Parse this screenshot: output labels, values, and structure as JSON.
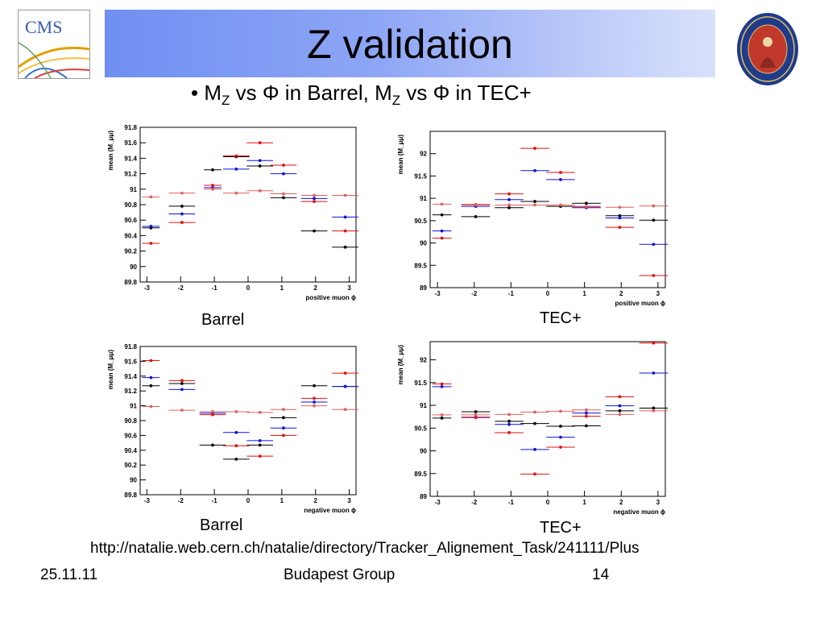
{
  "header": {
    "title": "Z validation",
    "cms_logo_text": "CMS",
    "bullet": {
      "pre": "M",
      "sub1": "Z",
      "mid": " vs Φ in Barrel, M",
      "sub2": "Z",
      "post": " vs Φ in TEC+"
    }
  },
  "captions": {
    "top_left": "Barrel",
    "top_right": "TEC+",
    "bottom_left": "Barrel",
    "bottom_right": "TEC+"
  },
  "url": "http://natalie.web.cern.ch/natalie/directory/Tracker_Alignement_Task/241111/Plus",
  "footer": {
    "date": "25.11.11",
    "group": "Budapest Group",
    "page": "14"
  },
  "colors": {
    "black": "#000000",
    "blue": "#1010e0",
    "red": "#e01010",
    "pink": "#e06060"
  },
  "chart_data": [
    {
      "type": "scatter",
      "xlabel": "positive muon ϕ",
      "ylabel": "mean (M_μμ)",
      "xlim": [
        -3.2,
        3.2
      ],
      "ylim": [
        89.8,
        91.8
      ],
      "yticks": [
        89.8,
        90,
        90.2,
        90.4,
        90.6,
        90.8,
        91,
        91.2,
        91.4,
        91.6,
        91.8
      ],
      "xticks": [
        -3,
        -2,
        -1,
        0,
        1,
        2,
        3
      ],
      "x_centers": [
        -2.88,
        -1.96,
        -1.05,
        -0.35,
        0.35,
        1.05,
        1.96,
        2.88
      ],
      "x_halfwidths": [
        0.26,
        0.39,
        0.26,
        0.39,
        0.39,
        0.39,
        0.39,
        0.39
      ],
      "series": [
        {
          "color_key": "black",
          "values": [
            90.5,
            90.78,
            91.25,
            91.42,
            91.3,
            90.89,
            90.46,
            90.25
          ]
        },
        {
          "color_key": "blue",
          "values": [
            90.52,
            90.68,
            91.02,
            91.26,
            91.37,
            91.2,
            90.88,
            90.64
          ]
        },
        {
          "color_key": "red",
          "values": [
            90.3,
            90.57,
            91.05,
            91.43,
            91.6,
            91.31,
            90.84,
            90.46
          ]
        },
        {
          "color_key": "pink",
          "values": [
            90.9,
            90.95,
            91.0,
            90.95,
            90.98,
            90.94,
            90.92,
            90.92
          ]
        }
      ]
    },
    {
      "type": "scatter",
      "xlabel": "positive muon ϕ",
      "ylabel": "mean (M_μμ)",
      "xlim": [
        -3.2,
        3.2
      ],
      "ylim": [
        89,
        92.5
      ],
      "yticks": [
        89,
        89.5,
        90,
        90.5,
        91,
        91.5,
        92
      ],
      "xticks": [
        -3,
        -2,
        -1,
        0,
        1,
        2,
        3
      ],
      "x_centers": [
        -2.88,
        -1.96,
        -1.05,
        -0.35,
        0.35,
        1.05,
        1.96,
        2.88
      ],
      "x_halfwidths": [
        0.26,
        0.39,
        0.39,
        0.39,
        0.39,
        0.39,
        0.39,
        0.39
      ],
      "series": [
        {
          "color_key": "black",
          "values": [
            90.63,
            90.59,
            90.79,
            90.93,
            90.82,
            90.89,
            90.61,
            90.51
          ]
        },
        {
          "color_key": "blue",
          "values": [
            90.27,
            90.82,
            90.97,
            91.62,
            91.42,
            90.79,
            90.56,
            89.97
          ]
        },
        {
          "color_key": "red",
          "values": [
            90.11,
            90.86,
            91.1,
            92.12,
            91.58,
            90.81,
            90.35,
            89.27
          ]
        },
        {
          "color_key": "pink",
          "values": [
            90.87,
            90.85,
            90.85,
            90.85,
            90.85,
            90.82,
            90.8,
            90.83
          ]
        }
      ]
    },
    {
      "type": "scatter",
      "xlabel": "negative muon ϕ",
      "ylabel": "mean (M_μμ)",
      "xlim": [
        -3.2,
        3.2
      ],
      "ylim": [
        89.8,
        91.8
      ],
      "yticks": [
        89.8,
        90,
        90.2,
        90.4,
        90.6,
        90.8,
        91,
        91.2,
        91.4,
        91.6,
        91.8
      ],
      "xticks": [
        -3,
        -2,
        -1,
        0,
        1,
        2,
        3
      ],
      "x_centers": [
        -2.88,
        -1.96,
        -1.05,
        -0.35,
        0.35,
        1.05,
        1.96,
        2.88
      ],
      "x_halfwidths": [
        0.26,
        0.39,
        0.39,
        0.39,
        0.39,
        0.39,
        0.39,
        0.39
      ],
      "series": [
        {
          "color_key": "black",
          "values": [
            91.27,
            91.3,
            90.47,
            90.28,
            90.47,
            90.84,
            91.27,
            91.26
          ]
        },
        {
          "color_key": "blue",
          "values": [
            91.38,
            91.22,
            90.9,
            90.64,
            90.53,
            90.7,
            91.05,
            91.26
          ]
        },
        {
          "color_key": "red",
          "values": [
            91.61,
            91.34,
            90.88,
            90.46,
            90.32,
            90.6,
            91.1,
            91.44
          ]
        },
        {
          "color_key": "pink",
          "values": [
            90.99,
            90.94,
            90.92,
            90.92,
            90.91,
            90.95,
            91.0,
            90.95
          ]
        }
      ]
    },
    {
      "type": "scatter",
      "xlabel": "negative muon ϕ",
      "ylabel": "mean (M_μμ)",
      "xlim": [
        -3.2,
        3.2
      ],
      "ylim": [
        89,
        92.4
      ],
      "yticks": [
        89,
        89.5,
        90,
        90.5,
        91,
        91.5,
        92
      ],
      "xticks": [
        -3,
        -2,
        -1,
        0,
        1,
        2,
        3
      ],
      "x_centers": [
        -2.88,
        -1.96,
        -1.05,
        -0.35,
        0.35,
        1.05,
        1.96,
        2.88
      ],
      "x_halfwidths": [
        0.26,
        0.39,
        0.39,
        0.39,
        0.39,
        0.39,
        0.39,
        0.39
      ],
      "series": [
        {
          "color_key": "black",
          "values": [
            90.72,
            90.86,
            90.65,
            90.6,
            90.54,
            90.55,
            90.88,
            90.94
          ]
        },
        {
          "color_key": "blue",
          "values": [
            91.41,
            90.74,
            90.58,
            90.03,
            90.3,
            90.83,
            90.99,
            91.71
          ]
        },
        {
          "color_key": "red",
          "values": [
            91.47,
            90.73,
            90.4,
            89.49,
            90.08,
            90.76,
            91.19,
            92.37
          ]
        },
        {
          "color_key": "pink",
          "values": [
            90.79,
            90.79,
            90.8,
            90.85,
            90.87,
            90.9,
            90.8,
            90.88
          ]
        }
      ]
    }
  ]
}
